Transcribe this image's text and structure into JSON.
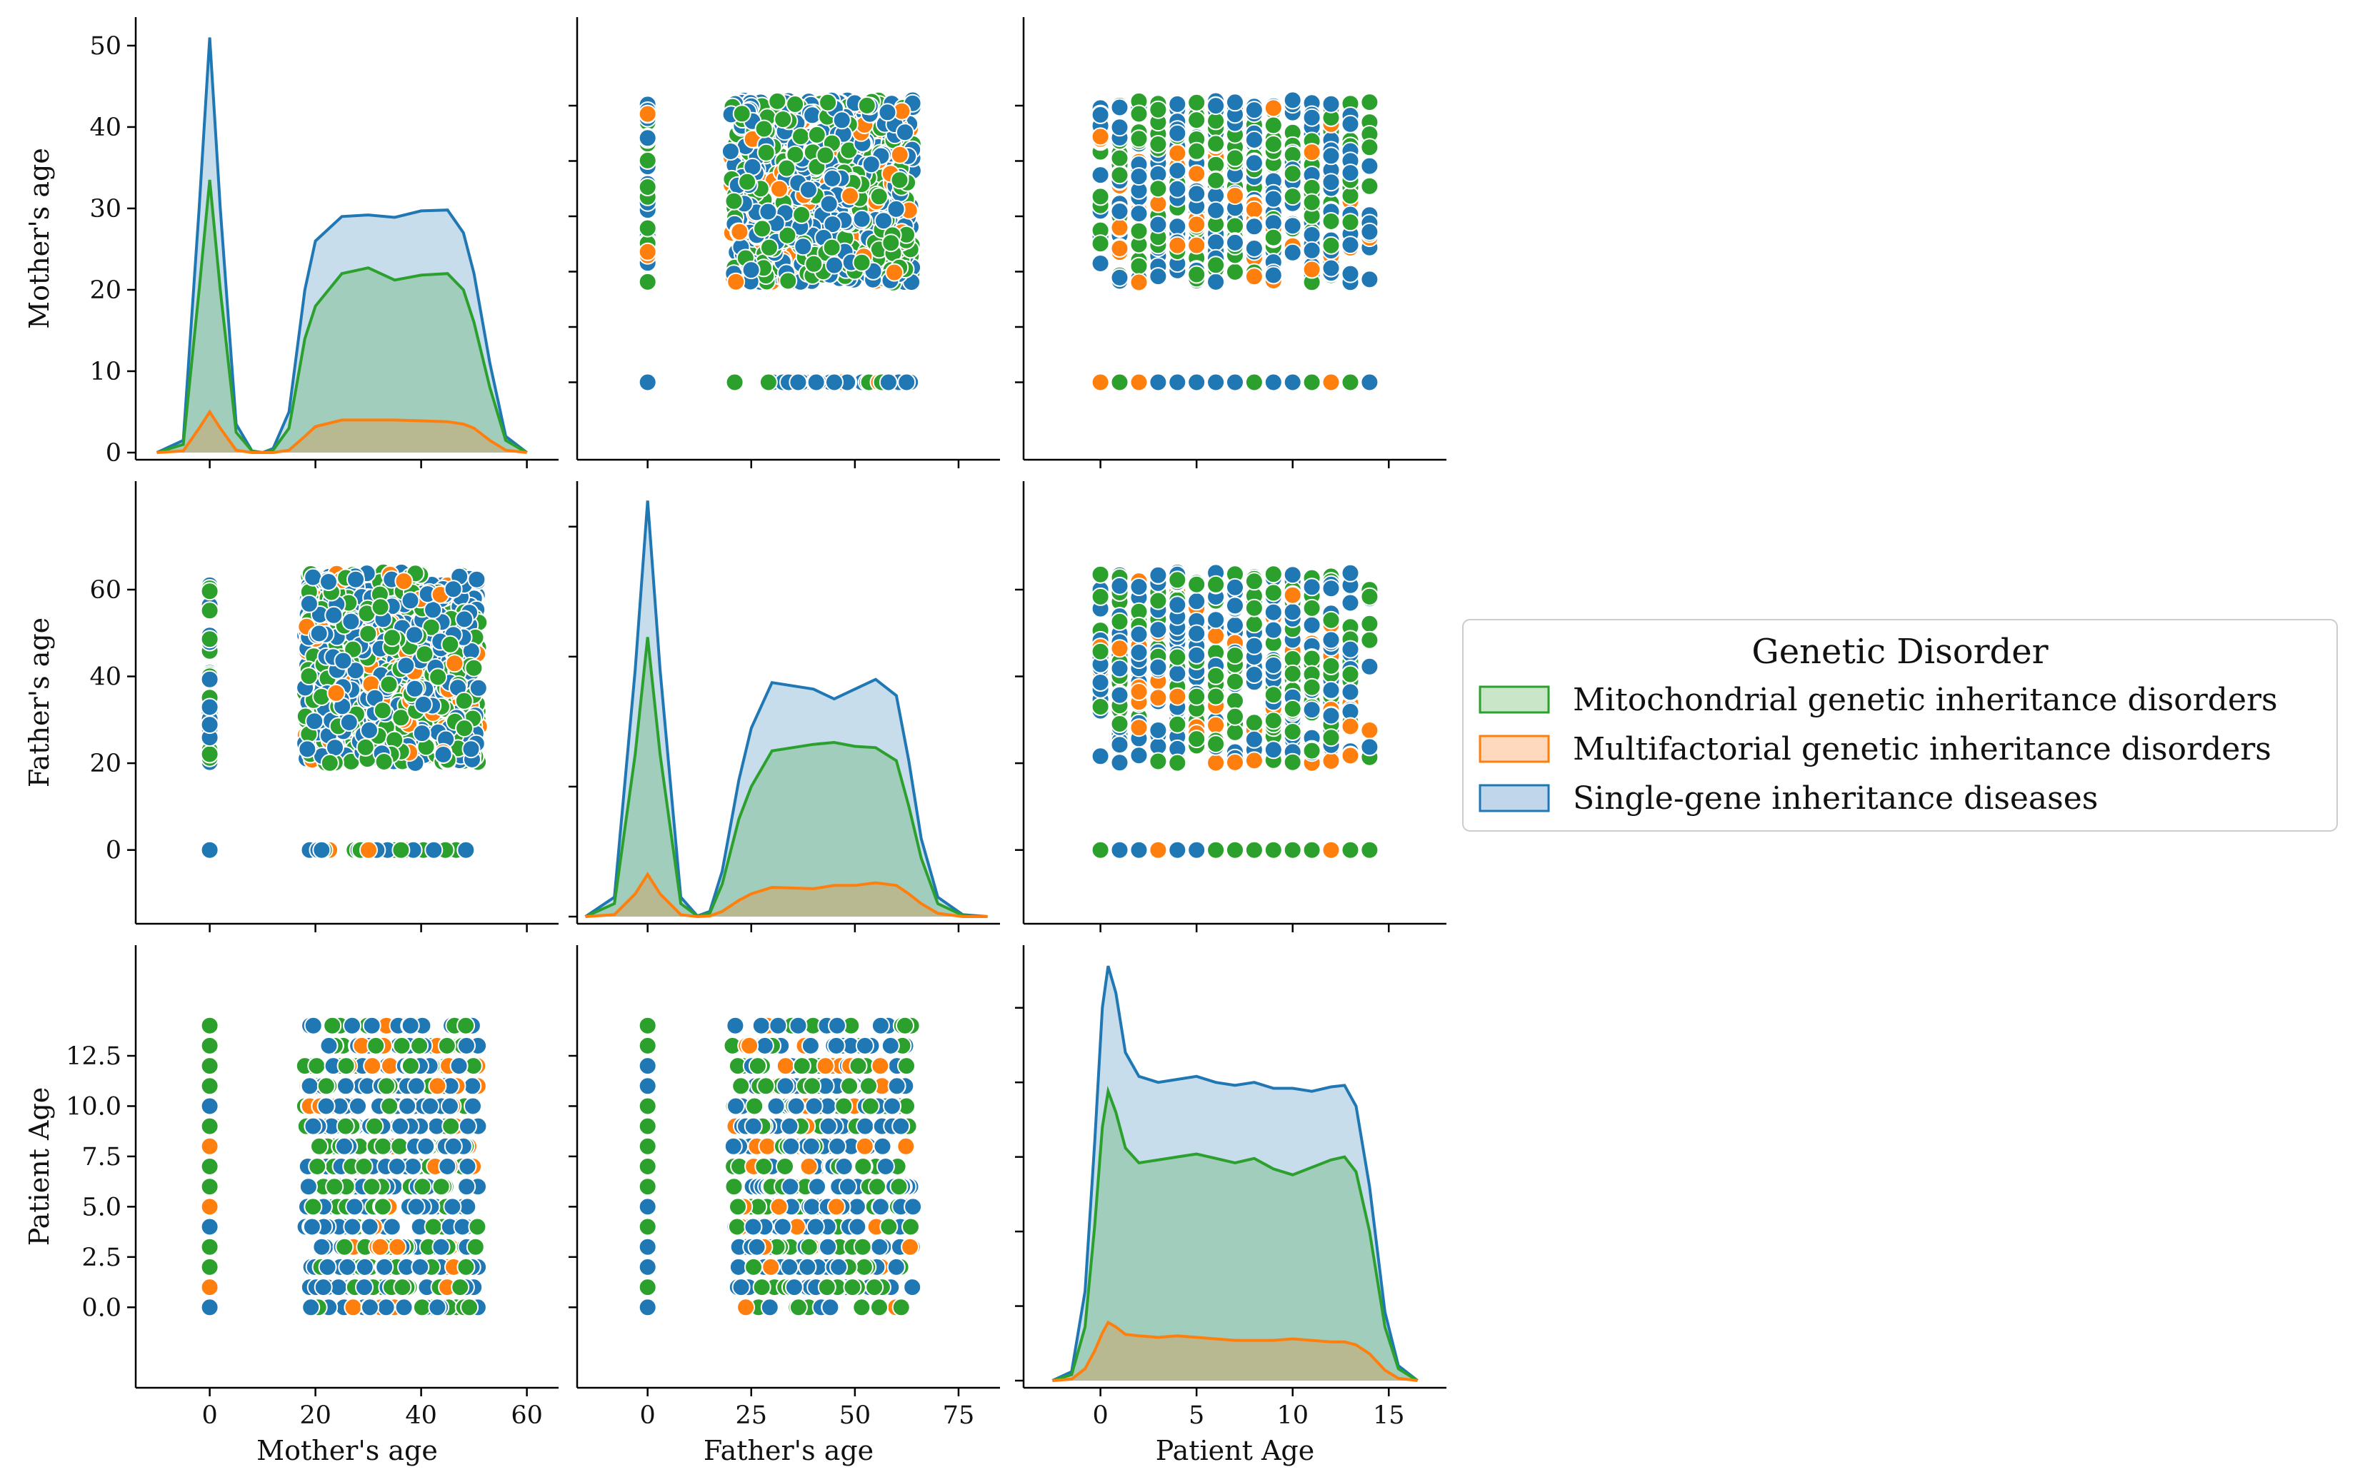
{
  "figure": {
    "legend": {
      "title": "Genetic Disorder",
      "entries": [
        {
          "label": "Mitochondrial genetic inheritance disorders",
          "color": "#2ca02c",
          "fill": "#c9e6c9"
        },
        {
          "label": "Multifactorial genetic inheritance disorders",
          "color": "#ff7f0e",
          "fill": "#ffd9bd"
        },
        {
          "label": "Single-gene inheritance diseases",
          "color": "#1f77b4",
          "fill": "#c0d6ea"
        }
      ]
    }
  },
  "chart_data": {
    "type": "pairplot",
    "hue_title": "Genetic Disorder",
    "variables": [
      "Mother's age",
      "Father's age",
      "Patient Age"
    ],
    "axes": [
      {
        "name": "Mother's age",
        "range": [
          -14,
          66
        ],
        "ticks": [
          0,
          10,
          20,
          30,
          40,
          50
        ],
        "tick_labels": [
          "0",
          "10",
          "20",
          "30",
          "40",
          "50"
        ],
        "diag_ticks": [
          0,
          20,
          40,
          60
        ],
        "diag_tick_labels": [
          "0",
          "20",
          "40",
          "60"
        ]
      },
      {
        "name": "Father's age",
        "range": [
          -17,
          85
        ],
        "ticks": [
          0,
          20,
          40,
          60
        ],
        "tick_labels": [
          "0",
          "20",
          "40",
          "60"
        ],
        "diag_ticks": [
          0,
          25,
          50,
          75
        ],
        "diag_tick_labels": [
          "0",
          "25",
          "50",
          "75"
        ]
      },
      {
        "name": "Patient Age",
        "range": [
          -4,
          18
        ],
        "ticks": [
          0,
          2.5,
          5,
          7.5,
          10,
          12.5
        ],
        "tick_labels": [
          "0.0",
          "2.5",
          "5.0",
          "7.5",
          "10.0",
          "12.5"
        ],
        "diag_ticks": [
          0,
          5,
          10,
          15
        ],
        "diag_tick_labels": [
          "0",
          "5",
          "10",
          "15"
        ]
      }
    ],
    "value_ranges": {
      "Mother's age": {
        "missing_value": 0,
        "min": 18,
        "max": 51
      },
      "Father's age": {
        "missing_value": 0,
        "min": 20,
        "max": 64
      },
      "Patient Age": {
        "min": 0,
        "max": 14,
        "step": 1
      }
    },
    "series": [
      {
        "name": "Mitochondrial genetic inheritance disorders",
        "color": "#2ca02c"
      },
      {
        "name": "Multifactorial genetic inheritance disorders",
        "color": "#ff7f0e"
      },
      {
        "name": "Single-gene inheritance diseases",
        "color": "#1f77b4"
      }
    ],
    "kde": {
      "Mother's age": {
        "x": [
          -10,
          -5,
          -2,
          0,
          2,
          5,
          8,
          10,
          12,
          15,
          18,
          20,
          25,
          30,
          35,
          40,
          45,
          48,
          50,
          53,
          56,
          60
        ],
        "stacked": [
          {
            "name": "Multifactorial genetic inheritance disorders",
            "y": [
              0,
              0.2,
              3,
              5,
              3,
              0.3,
              0,
              0,
              0,
              0.3,
              2,
              3.2,
              4,
              4,
              4,
              3.9,
              3.8,
              3.5,
              3,
              1.5,
              0.3,
              0
            ]
          },
          {
            "name": "Mitochondrial genetic inheritance disorders",
            "y": [
              0,
              1,
              20,
              33.5,
              20,
              2.5,
              0.2,
              0,
              0.3,
              3,
              14,
              18,
              22,
              22.7,
              21.2,
              21.8,
              22,
              20,
              16,
              8,
              1.5,
              0
            ]
          },
          {
            "name": "Single-gene inheritance diseases",
            "y": [
              0,
              1.5,
              30,
              51,
              30,
              3.5,
              0.2,
              0,
              0.5,
              5,
              20,
              26,
              29,
              29.2,
              28.9,
              29.7,
              29.8,
              27,
              22,
              11,
              2,
              0
            ]
          }
        ]
      },
      "Father's age": {
        "x": [
          -15,
          -8,
          -3,
          0,
          3,
          8,
          12,
          15,
          18,
          22,
          25,
          30,
          40,
          45,
          50,
          55,
          60,
          63,
          66,
          70,
          76,
          82
        ],
        "stacked": [
          {
            "name": "Multifactorial genetic inheritance disorders",
            "y": [
              0,
              0.3,
              3.5,
              6.5,
              3.5,
              0.3,
              0,
              0.1,
              0.8,
              2.5,
              3.5,
              4.5,
              4.3,
              4.8,
              4.8,
              5.2,
              4.8,
              3.5,
              2,
              0.5,
              0,
              0
            ]
          },
          {
            "name": "Mitochondrial genetic inheritance disorders",
            "y": [
              0,
              2,
              25,
              43,
              25,
              2,
              0.1,
              0.5,
              5,
              15,
              20,
              25.5,
              26.5,
              26.8,
              26.2,
              26,
              24,
              17,
              9,
              2,
              0.2,
              0
            ]
          },
          {
            "name": "Single-gene inheritance diseases",
            "y": [
              0,
              3,
              38,
              64,
              38,
              3,
              0.1,
              0.8,
              7,
              21,
              29,
              36,
              35,
              33.5,
              35,
              36.5,
              34,
              24,
              12,
              3,
              0.3,
              0
            ]
          }
        ]
      },
      "Patient Age": {
        "x": [
          -2.5,
          -1.5,
          -0.8,
          -0.3,
          0.1,
          0.4,
          0.8,
          1.3,
          2,
          3,
          4,
          5,
          6,
          7,
          8,
          9,
          10,
          11,
          12,
          12.7,
          13.3,
          14,
          14.8,
          15.5,
          16.5
        ],
        "stacked": [
          {
            "name": "Multifactorial genetic inheritance disorders",
            "y": [
              0,
              0.05,
              0.4,
              1.0,
              1.6,
              1.95,
              1.8,
              1.55,
              1.5,
              1.45,
              1.5,
              1.45,
              1.4,
              1.35,
              1.35,
              1.35,
              1.4,
              1.35,
              1.3,
              1.3,
              1.2,
              0.9,
              0.35,
              0.08,
              0
            ]
          },
          {
            "name": "Mitochondrial genetic inheritance disorders",
            "y": [
              0,
              0.2,
              1.8,
              5.2,
              8.5,
              9.7,
              9.0,
              7.8,
              7.3,
              7.4,
              7.5,
              7.6,
              7.45,
              7.3,
              7.45,
              7.1,
              6.9,
              7.15,
              7.4,
              7.5,
              7.0,
              5.0,
              1.8,
              0.4,
              0
            ]
          },
          {
            "name": "Single-gene inheritance diseases",
            "y": [
              0,
              0.3,
              3,
              8,
              12.5,
              13.9,
              13,
              11,
              10.2,
              10.0,
              10.1,
              10.2,
              10.0,
              9.9,
              10.0,
              9.8,
              9.8,
              9.7,
              9.85,
              9.9,
              9.2,
              6.5,
              2.3,
              0.5,
              0
            ]
          }
        ]
      }
    },
    "diag_ticks_left": {
      "Mother's age": [
        "0",
        "10",
        "20",
        "30",
        "40",
        "50"
      ]
    }
  }
}
